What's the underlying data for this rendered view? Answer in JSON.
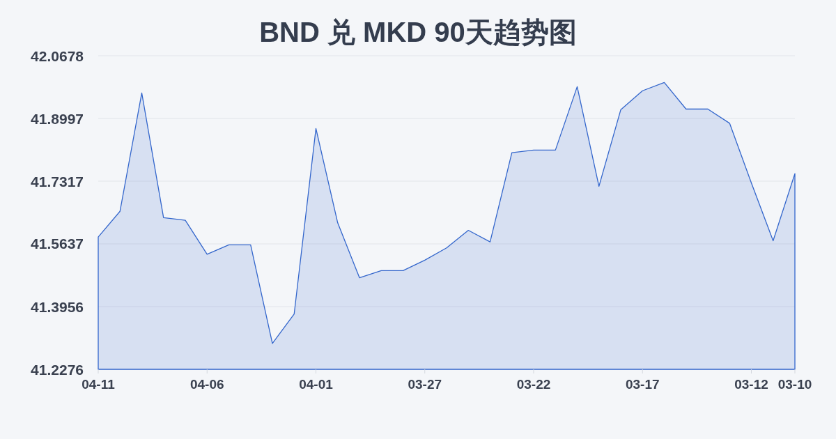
{
  "chart_data": {
    "type": "area",
    "title": "BND 兑 MKD 90天趋势图",
    "categories": [
      "04-11",
      null,
      null,
      null,
      null,
      "04-06",
      null,
      null,
      null,
      null,
      "04-01",
      null,
      null,
      null,
      null,
      "03-27",
      null,
      null,
      null,
      null,
      "03-22",
      null,
      null,
      null,
      null,
      "03-17",
      null,
      null,
      null,
      null,
      "03-12",
      null,
      "03-10"
    ],
    "values": [
      41.582,
      41.651,
      41.968,
      41.634,
      41.627,
      41.536,
      41.561,
      41.561,
      41.297,
      41.376,
      41.873,
      41.62,
      41.473,
      41.492,
      41.492,
      41.52,
      41.553,
      41.6,
      41.569,
      41.808,
      41.815,
      41.815,
      41.985,
      41.718,
      41.923,
      41.974,
      41.996,
      41.925,
      41.925,
      41.887,
      41.727,
      41.572,
      41.752
    ],
    "color": "#3366cc",
    "ylim": [
      41.2276,
      42.0678
    ],
    "yticks": [
      41.2276,
      41.3956,
      41.5637,
      41.7317,
      41.8997,
      42.0678
    ],
    "grid": "y"
  }
}
